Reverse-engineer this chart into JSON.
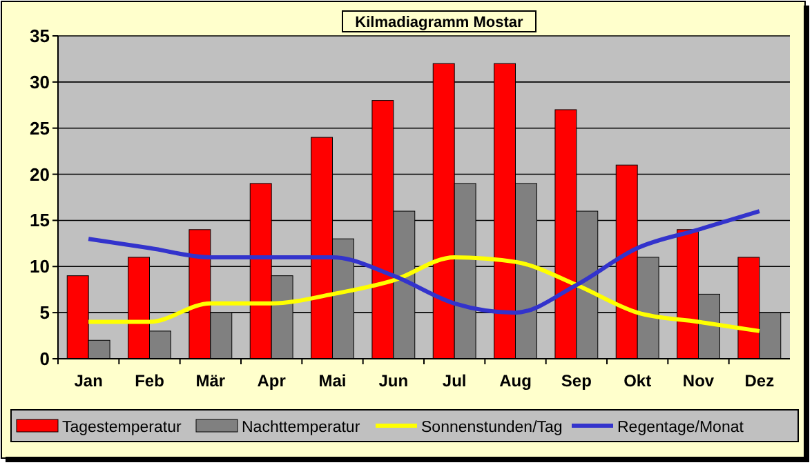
{
  "chart_data": {
    "type": "bar",
    "title": "Kilmadiagramm Mostar",
    "categories": [
      "Jan",
      "Feb",
      "Mär",
      "Apr",
      "Mai",
      "Jun",
      "Jul",
      "Aug",
      "Sep",
      "Okt",
      "Nov",
      "Dez"
    ],
    "series": [
      {
        "name": "Tagestemperatur",
        "color": "#ff0000",
        "values": [
          9,
          11,
          14,
          19,
          24,
          28,
          32,
          32,
          27,
          21,
          14,
          11
        ]
      },
      {
        "name": "Nachttemperatur",
        "color": "#808080",
        "values": [
          2,
          3,
          5,
          9,
          13,
          16,
          19,
          19,
          16,
          11,
          7,
          5
        ]
      },
      {
        "type": "line",
        "name": "Sonnenstunden/Tag",
        "color": "#ffff00",
        "values": [
          4,
          4,
          6,
          6,
          7,
          8.5,
          11,
          10.5,
          8,
          5,
          4,
          3
        ]
      },
      {
        "type": "line",
        "name": "Regentage/Monat",
        "color": "#3333cc",
        "values": [
          13,
          12,
          11,
          11,
          11,
          9,
          6,
          5,
          8,
          12,
          14,
          16
        ]
      }
    ],
    "ylim": [
      0,
      35
    ],
    "yticks": [
      0,
      5,
      10,
      15,
      20,
      25,
      30,
      35
    ],
    "grid": "y",
    "legend": "bottom"
  }
}
